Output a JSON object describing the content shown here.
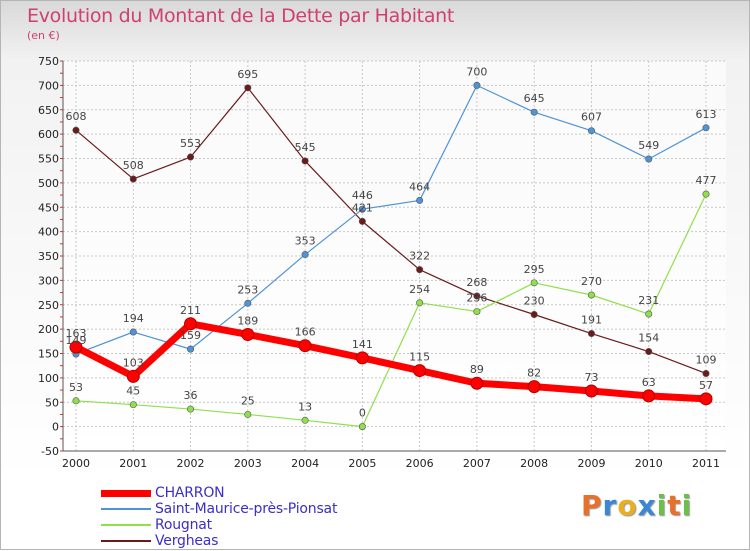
{
  "chart_data": {
    "type": "line",
    "title": "Evolution du Montant de la Dette par Habitant",
    "subtitle": "(en €)",
    "x": [
      "2000",
      "2001",
      "2002",
      "2003",
      "2004",
      "2005",
      "2006",
      "2007",
      "2008",
      "2009",
      "2010",
      "2011"
    ],
    "ylim": [
      -50,
      750
    ],
    "yticks": [
      -50,
      0,
      50,
      100,
      150,
      200,
      250,
      300,
      350,
      400,
      450,
      500,
      550,
      600,
      650,
      700,
      750
    ],
    "grid": true,
    "legend_position": "bottom-left",
    "series": [
      {
        "name": "CHARRON",
        "color": "#ff0000",
        "values": [
          163,
          103,
          211,
          189,
          166,
          141,
          115,
          89,
          82,
          73,
          63,
          57
        ]
      },
      {
        "name": "Saint-Maurice-près-Pionsat",
        "color": "#4f94d4",
        "values": [
          149,
          194,
          159,
          253,
          353,
          446,
          464,
          700,
          645,
          607,
          549,
          613
        ]
      },
      {
        "name": "Rougnat",
        "color": "#8fe04a",
        "values": [
          53,
          45,
          36,
          25,
          13,
          0,
          254,
          236,
          295,
          270,
          231,
          477
        ]
      },
      {
        "name": "Vergheas",
        "color": "#6b1a1a",
        "values": [
          608,
          508,
          553,
          695,
          545,
          421,
          322,
          268,
          230,
          191,
          154,
          109
        ]
      }
    ]
  },
  "logo": {
    "text": "Proxiti",
    "letters": [
      {
        "ch": "P",
        "color": "#e8702a"
      },
      {
        "ch": "r",
        "color": "#3b87d6"
      },
      {
        "ch": "o",
        "color": "#e8b020"
      },
      {
        "ch": "x",
        "color": "#3b87d6"
      },
      {
        "ch": "i",
        "color": "#6cc04a"
      },
      {
        "ch": "t",
        "color": "#e8702a"
      },
      {
        "ch": "i",
        "color": "#6cc04a"
      }
    ]
  }
}
